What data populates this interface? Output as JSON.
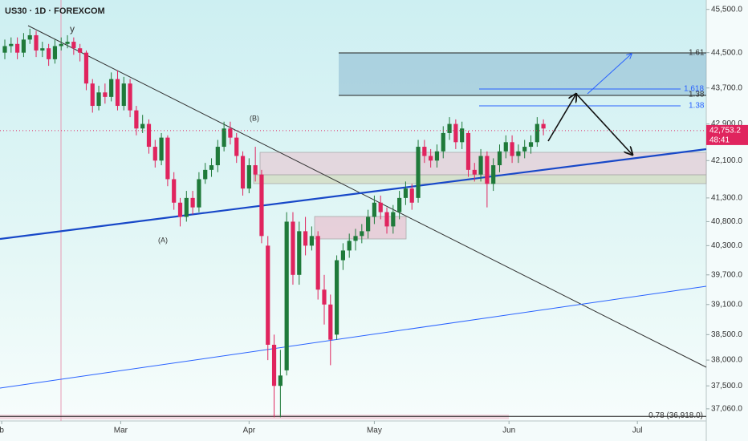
{
  "chart_data": {
    "type": "candlestick",
    "title": "US30 · 1D · FOREXCOM",
    "log_scale": true,
    "up_color": "#1f7a3a",
    "down_color": "#e0245e",
    "xlim": [
      -0.77,
      112
    ],
    "xticks": [
      {
        "value": -0.5,
        "label": "b"
      },
      {
        "value": 18.5,
        "label": "Mar"
      },
      {
        "value": 39,
        "label": "Apr"
      },
      {
        "value": 59,
        "label": "May"
      },
      {
        "value": 80.5,
        "label": "Jun"
      },
      {
        "value": 101,
        "label": "Jul"
      }
    ],
    "ylim": [
      36830,
      45720
    ],
    "yticks": [
      {
        "value": 45500,
        "label": "45,500.0"
      },
      {
        "value": 44500,
        "label": "44,500.0"
      },
      {
        "value": 43700,
        "label": "43,700.0"
      },
      {
        "value": 42900,
        "label": "42,900.0"
      },
      {
        "value": 42100,
        "label": "42,100.0"
      },
      {
        "value": 41300,
        "label": "41,300.0"
      },
      {
        "value": 40800,
        "label": "40,800.0"
      },
      {
        "value": 40300,
        "label": "40,300.0"
      },
      {
        "value": 39700,
        "label": "39,700.0"
      },
      {
        "value": 39100,
        "label": "39,100.0"
      },
      {
        "value": 38500,
        "label": "38,500.0"
      },
      {
        "value": 38000,
        "label": "38,000.0"
      },
      {
        "value": 37500,
        "label": "37,500.0"
      },
      {
        "value": 37060,
        "label": "37,060.0"
      }
    ],
    "open": [
      44500,
      44650,
      44700,
      44500,
      44800,
      44900,
      44550,
      44600,
      44350,
      44650,
      44700,
      44750,
      44600,
      44500,
      43800,
      43300,
      43600,
      43500,
      43900,
      43300,
      43800,
      43200,
      42800,
      42900,
      42400,
      42100,
      42600,
      41700,
      41200,
      40900,
      41300,
      41100,
      41700,
      41900,
      42000,
      42400,
      42800,
      42600,
      42200,
      41500,
      42000,
      41800,
      40300,
      38300,
      37500,
      37800,
      40800,
      39700,
      40600,
      40300,
      40500,
      39400,
      39100,
      38500,
      40000,
      40200,
      40400,
      40500,
      40600,
      40900,
      41200,
      41000,
      40700,
      41000,
      41300,
      41500,
      41300,
      42400,
      42200,
      42100,
      42300,
      42700,
      42900,
      42500,
      42700,
      41900,
      41800,
      42200,
      41600,
      42000,
      42300,
      42500,
      42200,
      42300,
      42400,
      42500,
      42900
    ],
    "high": [
      44800,
      44850,
      44850,
      44950,
      45050,
      45000,
      44750,
      44700,
      44800,
      44850,
      44900,
      44850,
      44700,
      44550,
      43900,
      43750,
      43800,
      44050,
      44100,
      43950,
      43900,
      43300,
      43100,
      43000,
      42550,
      42700,
      42650,
      41850,
      41300,
      41450,
      41450,
      41850,
      42050,
      42150,
      42550,
      42950,
      42950,
      42700,
      42300,
      42150,
      42400,
      41900,
      40500,
      38500,
      38200,
      41000,
      41000,
      40800,
      40900,
      40700,
      40600,
      39700,
      39300,
      40100,
      40350,
      40550,
      40650,
      40750,
      41050,
      41350,
      41350,
      41100,
      41150,
      41450,
      41650,
      41600,
      42550,
      42550,
      42350,
      42450,
      42850,
      43050,
      43000,
      42950,
      42750,
      42050,
      42350,
      42300,
      42150,
      42450,
      42650,
      42650,
      42450,
      42550,
      42650,
      43050,
      43000
    ],
    "low": [
      44350,
      44500,
      44350,
      44400,
      44700,
      44400,
      44400,
      44200,
      44250,
      44550,
      44600,
      44450,
      44300,
      43650,
      43150,
      43200,
      43350,
      43400,
      43200,
      43200,
      43050,
      42650,
      42700,
      42250,
      41950,
      42000,
      41550,
      41050,
      40700,
      40800,
      40950,
      41000,
      41600,
      41750,
      41850,
      42300,
      42450,
      42050,
      41350,
      41400,
      41650,
      40350,
      38000,
      36900,
      36900,
      37700,
      39500,
      39500,
      40100,
      40200,
      39200,
      38700,
      37900,
      38400,
      39800,
      40050,
      40200,
      40350,
      40450,
      40750,
      40850,
      40550,
      40550,
      40850,
      41150,
      41050,
      41200,
      42050,
      41950,
      41950,
      42150,
      42550,
      42350,
      42350,
      41750,
      41650,
      41650,
      41100,
      41450,
      41850,
      42150,
      42050,
      42050,
      42150,
      42250,
      42400,
      42650
    ],
    "close": [
      44650,
      44700,
      44500,
      44800,
      44900,
      44550,
      44600,
      44350,
      44650,
      44700,
      44750,
      44600,
      44500,
      43800,
      43300,
      43600,
      43500,
      43900,
      43300,
      43800,
      43200,
      42800,
      42900,
      42400,
      42100,
      42600,
      41700,
      41200,
      40900,
      41300,
      41100,
      41700,
      41900,
      42000,
      42400,
      42800,
      42600,
      42200,
      41500,
      42000,
      41800,
      40500,
      38300,
      37500,
      37700,
      40800,
      39700,
      40600,
      40300,
      40500,
      39400,
      39100,
      38400,
      40000,
      40200,
      40400,
      40500,
      40600,
      40900,
      41200,
      41000,
      40700,
      41000,
      41300,
      41500,
      41200,
      42400,
      42200,
      42100,
      42300,
      42700,
      42900,
      42500,
      42800,
      41900,
      41800,
      42200,
      41600,
      42000,
      42300,
      42500,
      42200,
      42300,
      42400,
      42500,
      42900,
      42800
    ],
    "current_price": {
      "value": 42753.2,
      "label": "42,753.2"
    },
    "countdown": "48:41",
    "fib_level": {
      "value": 36918,
      "label": "0.78 (36,918.0)"
    },
    "fib_labels": [
      "1.61",
      "1.618",
      "1.38",
      "1.38"
    ],
    "annotations": [
      "(A)",
      "(B)",
      "y"
    ]
  }
}
